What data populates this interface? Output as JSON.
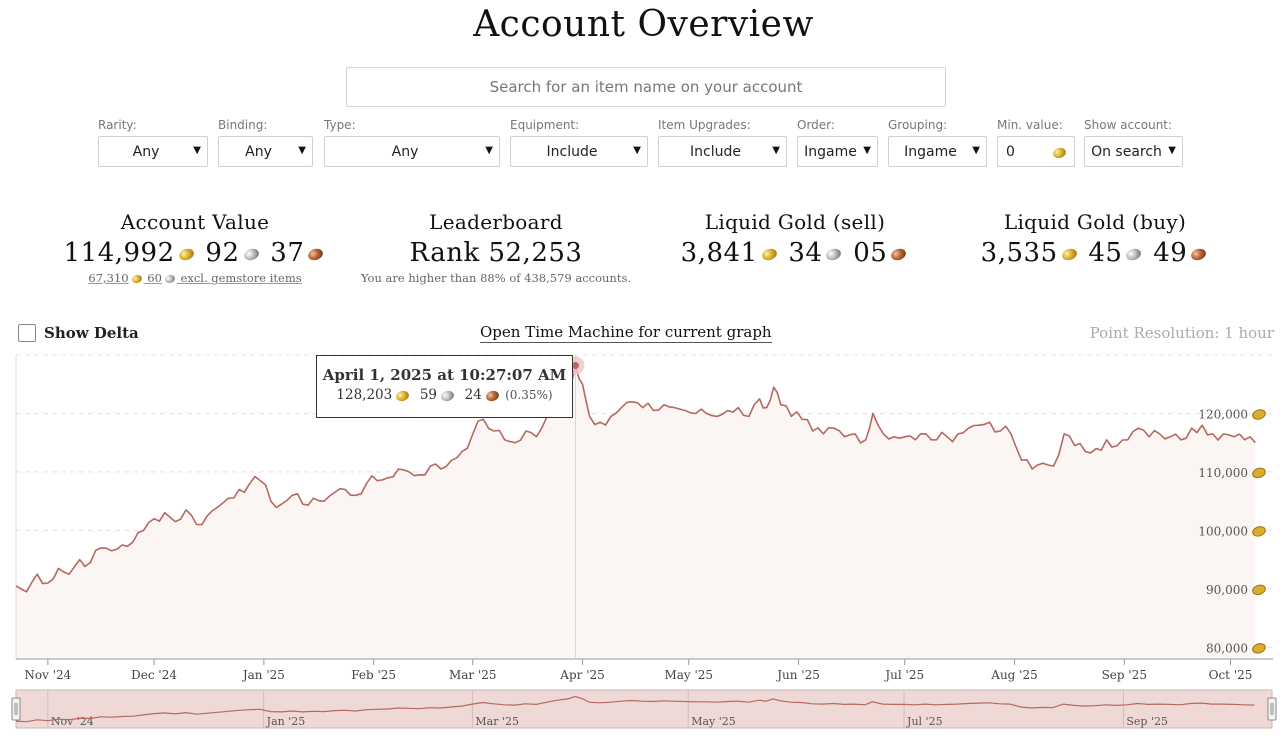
{
  "page": {
    "title": "Account Overview"
  },
  "search": {
    "placeholder": "Search for an item name on your account"
  },
  "filters": [
    {
      "label": "Rarity:",
      "value": "Any"
    },
    {
      "label": "Binding:",
      "value": "Any"
    },
    {
      "label": "Type:",
      "value": "Any"
    },
    {
      "label": "Equipment:",
      "value": "Include"
    },
    {
      "label": "Item Upgrades:",
      "value": "Include"
    },
    {
      "label": "Order:",
      "value": "Ingame"
    },
    {
      "label": "Grouping:",
      "value": "Ingame"
    },
    {
      "label": "Min. value:",
      "value": "0"
    },
    {
      "label": "Show account:",
      "value": "On search"
    }
  ],
  "stats": {
    "account_value": {
      "title": "Account Value",
      "gold": "114,992",
      "silver": "92",
      "copper": "37",
      "sub_gold": "67,310",
      "sub_silver": "60",
      "sub_text": "excl. gemstore items"
    },
    "leaderboard": {
      "title": "Leaderboard",
      "rank": "Rank 52,253",
      "sub": "You are higher than 88% of 438,579 accounts."
    },
    "liquid_sell": {
      "title": "Liquid Gold (sell)",
      "gold": "3,841",
      "silver": "34",
      "copper": "05"
    },
    "liquid_buy": {
      "title": "Liquid Gold (buy)",
      "gold": "3,535",
      "silver": "45",
      "copper": "49"
    }
  },
  "controls": {
    "show_delta": "Show Delta",
    "time_machine": "Open Time Machine for current graph",
    "resolution": "Point Resolution: 1 hour"
  },
  "tooltip": {
    "date": "April 1, 2025 at 10:27:07 AM",
    "gold": "128,203",
    "silver": "59",
    "copper": "24",
    "change": "(0.35%)"
  },
  "colors": {
    "line": "#b5695f",
    "fill": "#fbf5f4",
    "navigator": "#efd9d7",
    "grid": "#e4e4e4"
  },
  "chart_data": {
    "type": "line",
    "title": "Account Value",
    "ylabel": "Gold",
    "ylim": [
      78000,
      130000
    ],
    "y_ticks": [
      80000,
      90000,
      100000,
      110000,
      120000
    ],
    "y_tick_labels": [
      "80,000",
      "90,000",
      "100,000",
      "110,000",
      "120,000"
    ],
    "x_range": [
      "2024-10-23",
      "2025-10-12"
    ],
    "x_tick_labels": [
      "Nov '24",
      "Dec '24",
      "Jan '25",
      "Feb '25",
      "Mar '25",
      "Apr '25",
      "May '25",
      "Jun '25",
      "Jul '25",
      "Aug '25",
      "Sep '25",
      "Oct '25"
    ],
    "x_tick_days": [
      9,
      39,
      70,
      101,
      129,
      160,
      190,
      221,
      251,
      282,
      313,
      343
    ],
    "navigator_labels": [
      "Nov '24",
      "Jan '25",
      "Mar '25",
      "May '25",
      "Jul '25",
      "Sep '25"
    ],
    "navigator_label_days": [
      9,
      70,
      129,
      190,
      251,
      313
    ],
    "series": [
      {
        "name": "Account Value",
        "points": [
          [
            0,
            90500
          ],
          [
            3,
            89500
          ],
          [
            6,
            92500
          ],
          [
            9,
            91000
          ],
          [
            12,
            93500
          ],
          [
            15,
            92500
          ],
          [
            18,
            95000
          ],
          [
            21,
            94500
          ],
          [
            24,
            97000
          ],
          [
            27,
            96500
          ],
          [
            30,
            97500
          ],
          [
            33,
            98000
          ],
          [
            36,
            100000
          ],
          [
            39,
            102000
          ],
          [
            42,
            103000
          ],
          [
            45,
            101500
          ],
          [
            48,
            103500
          ],
          [
            51,
            101000
          ],
          [
            54,
            102500
          ],
          [
            57,
            104000
          ],
          [
            60,
            105500
          ],
          [
            63,
            107000
          ],
          [
            66,
            108000
          ],
          [
            69,
            108500
          ],
          [
            72,
            105000
          ],
          [
            75,
            104500
          ],
          [
            78,
            106000
          ],
          [
            81,
            104500
          ],
          [
            84,
            105500
          ],
          [
            87,
            105000
          ],
          [
            90,
            106500
          ],
          [
            93,
            107000
          ],
          [
            96,
            106000
          ],
          [
            99,
            108000
          ],
          [
            102,
            108500
          ],
          [
            105,
            109000
          ],
          [
            108,
            110500
          ],
          [
            111,
            110000
          ],
          [
            114,
            109500
          ],
          [
            117,
            111000
          ],
          [
            120,
            110500
          ],
          [
            123,
            112000
          ],
          [
            126,
            113500
          ],
          [
            129,
            116500
          ],
          [
            132,
            119000
          ],
          [
            135,
            117000
          ],
          [
            138,
            115500
          ],
          [
            141,
            115000
          ],
          [
            144,
            117000
          ],
          [
            147,
            116000
          ],
          [
            150,
            119500
          ],
          [
            153,
            122500
          ],
          [
            156,
            124500
          ],
          [
            158,
            128203
          ],
          [
            160,
            125000
          ],
          [
            162,
            119500
          ],
          [
            165,
            118500
          ],
          [
            168,
            119500
          ],
          [
            171,
            121000
          ],
          [
            174,
            122000
          ],
          [
            177,
            121000
          ],
          [
            180,
            120500
          ],
          [
            183,
            121500
          ],
          [
            186,
            121000
          ],
          [
            189,
            120500
          ],
          [
            192,
            120000
          ],
          [
            195,
            120000
          ],
          [
            198,
            119500
          ],
          [
            201,
            120500
          ],
          [
            204,
            121000
          ],
          [
            207,
            119500
          ],
          [
            210,
            122500
          ],
          [
            212,
            121000
          ],
          [
            214,
            124500
          ],
          [
            216,
            121500
          ],
          [
            219,
            119500
          ],
          [
            222,
            119000
          ],
          [
            225,
            117000
          ],
          [
            228,
            116500
          ],
          [
            231,
            117500
          ],
          [
            234,
            116000
          ],
          [
            237,
            116500
          ],
          [
            240,
            115500
          ],
          [
            242,
            120000
          ],
          [
            245,
            116500
          ],
          [
            248,
            116000
          ],
          [
            251,
            116000
          ],
          [
            254,
            115500
          ],
          [
            257,
            116500
          ],
          [
            260,
            115500
          ],
          [
            263,
            116000
          ],
          [
            266,
            116500
          ],
          [
            269,
            117500
          ],
          [
            272,
            118000
          ],
          [
            275,
            118500
          ],
          [
            278,
            117000
          ],
          [
            281,
            116500
          ],
          [
            284,
            112000
          ],
          [
            287,
            110500
          ],
          [
            290,
            111500
          ],
          [
            293,
            111000
          ],
          [
            296,
            116500
          ],
          [
            299,
            114500
          ],
          [
            302,
            113500
          ],
          [
            305,
            114000
          ],
          [
            308,
            115500
          ],
          [
            311,
            114500
          ],
          [
            314,
            115500
          ],
          [
            317,
            117500
          ],
          [
            320,
            116000
          ],
          [
            323,
            116500
          ],
          [
            326,
            116000
          ],
          [
            329,
            115500
          ],
          [
            332,
            117500
          ],
          [
            335,
            118000
          ],
          [
            338,
            116500
          ],
          [
            341,
            116500
          ],
          [
            344,
            116000
          ],
          [
            347,
            115500
          ],
          [
            350,
            115000
          ]
        ]
      }
    ],
    "highlight": {
      "x_day": 158,
      "value": 128203
    }
  }
}
